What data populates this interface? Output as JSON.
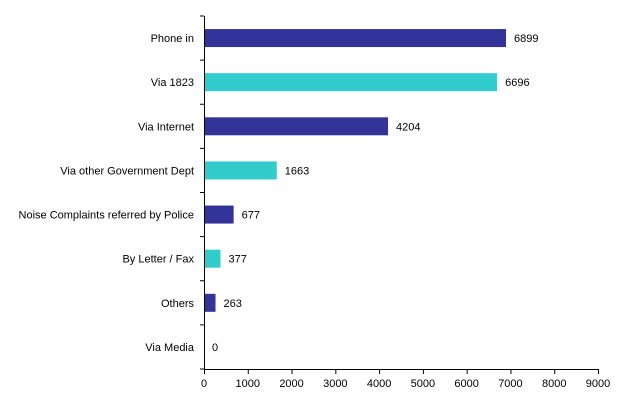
{
  "chart_data": {
    "type": "bar",
    "orientation": "horizontal",
    "categories": [
      "Phone in",
      "Via 1823",
      "Via Internet",
      "Via other Government Dept",
      "Noise Complaints referred by Police",
      "By Letter / Fax",
      "Others",
      "Via Media"
    ],
    "values": [
      6899,
      6696,
      4204,
      1663,
      677,
      377,
      263,
      0
    ],
    "value_labels": [
      "6899",
      "6696",
      "4204",
      "1663",
      "677",
      "377",
      "263",
      "0"
    ],
    "bar_colors": [
      "#333399",
      "#33CCCC",
      "#333399",
      "#33CCCC",
      "#333399",
      "#33CCCC",
      "#333399",
      "#33CCCC"
    ],
    "xlim": [
      0,
      9000
    ],
    "x_ticks": [
      0,
      1000,
      2000,
      3000,
      4000,
      5000,
      6000,
      7000,
      8000,
      9000
    ],
    "x_tick_labels": [
      "0",
      "1000",
      "2000",
      "3000",
      "4000",
      "5000",
      "6000",
      "7000",
      "8000",
      "9000"
    ],
    "grid": false,
    "legend": false
  }
}
